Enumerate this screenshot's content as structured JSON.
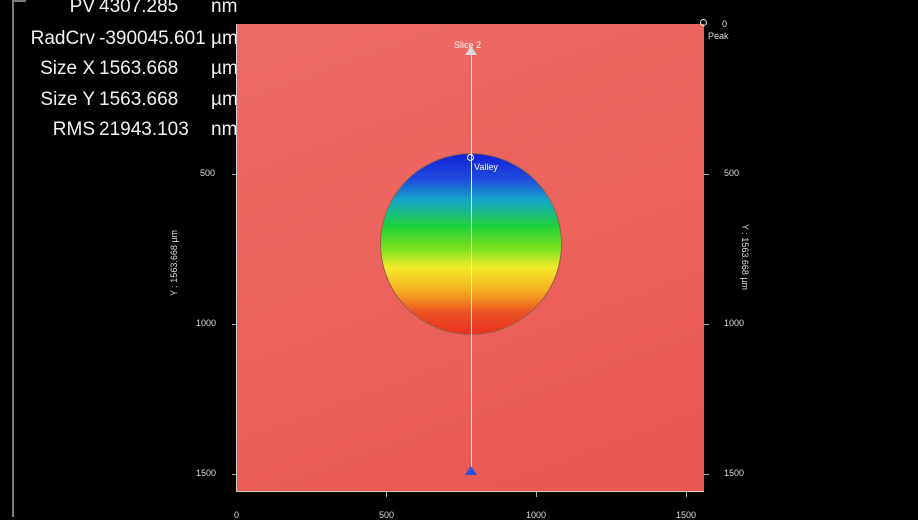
{
  "stats": [
    {
      "label": "PV",
      "value": "4307.285",
      "unit": "nm"
    },
    {
      "label": "RadCrv",
      "value": "-390045.601",
      "unit": "µm"
    },
    {
      "label": "Size X",
      "value": "1563.668",
      "unit": "µm"
    },
    {
      "label": "Size Y",
      "value": "1563.668",
      "unit": "µm"
    },
    {
      "label": "RMS",
      "value": "21943.103",
      "unit": "nm"
    }
  ],
  "plot": {
    "slice_label": "Slice 2",
    "valley_label": "Valley",
    "peak_label": "Peak",
    "peak_value": "0",
    "y_axis_title_left": "Y : 1563.668 µm",
    "y_axis_title_right": "Y : 1563.668 µm",
    "y_ticks": [
      "500",
      "1000",
      "1500"
    ],
    "x_ticks": [
      "0",
      "500",
      "1000",
      "1500"
    ],
    "colors": {
      "background": "#eb625c",
      "sphere_top": "#1421d8",
      "sphere_mid": "#1ed13a",
      "sphere_low": "#f2ea2a",
      "sphere_bottom": "#e8311f"
    }
  }
}
